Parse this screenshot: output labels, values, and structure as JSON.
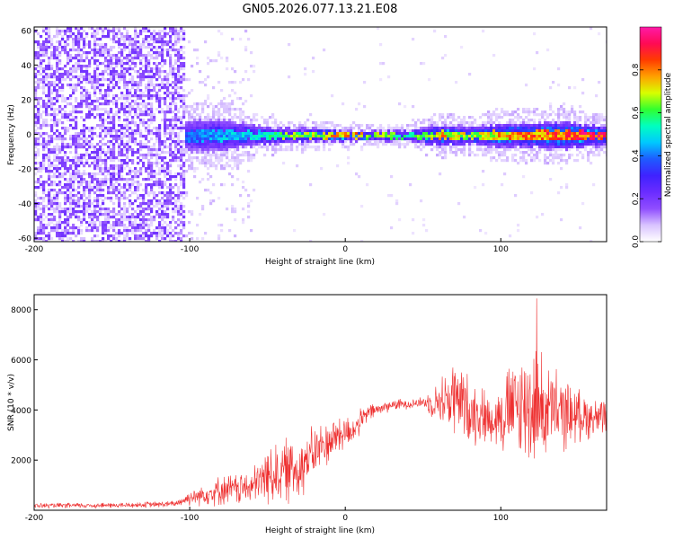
{
  "figure_title": "GN05.2026.077.13.21.E08",
  "colors": {
    "snr_line": "#ee3030",
    "axis": "#000000",
    "background": "#ffffff",
    "colormap": [
      "#ffffff",
      "#d9c3ff",
      "#8f4dff",
      "#6a2cff",
      "#3f22ff",
      "#1e5bff",
      "#00c8ff",
      "#00ffc0",
      "#30ff30",
      "#d8ff00",
      "#ffa000",
      "#ff3c00",
      "#ff0a55",
      "#ff1aa8"
    ]
  },
  "chart_data": [
    {
      "type": "heatmap",
      "ylabel": "Frequency (Hz)",
      "xlabel": "Height of straight line (km)",
      "xlim": [
        -200,
        168
      ],
      "ylim": [
        -62,
        62
      ],
      "xticks": [
        "-200",
        "-100",
        "0",
        "100"
      ],
      "xtick_values": [
        -200,
        -100,
        0,
        100
      ],
      "yticks": [
        "60",
        "40",
        "20",
        "0",
        "-20",
        "-40",
        "-60"
      ],
      "ytick_values": [
        60,
        40,
        20,
        0,
        -20,
        -40,
        -60
      ],
      "noise_region": {
        "from": -200,
        "to": -103,
        "description": "broadband noise"
      },
      "signal_band": {
        "center_hz": 0,
        "points": [
          {
            "x": -112,
            "halfwidth_hz": 5,
            "peak": 0.35
          },
          {
            "x": -100,
            "halfwidth_hz": 9,
            "peak": 0.45
          },
          {
            "x": -80,
            "halfwidth_hz": 9,
            "peak": 0.5
          },
          {
            "x": -60,
            "halfwidth_hz": 6,
            "peak": 0.55
          },
          {
            "x": -40,
            "halfwidth_hz": 4,
            "peak": 0.7
          },
          {
            "x": -20,
            "halfwidth_hz": 4,
            "peak": 0.75
          },
          {
            "x": 0,
            "halfwidth_hz": 3,
            "peak": 0.9
          },
          {
            "x": 20,
            "halfwidth_hz": 3,
            "peak": 0.75
          },
          {
            "x": 40,
            "halfwidth_hz": 3,
            "peak": 0.6
          },
          {
            "x": 60,
            "halfwidth_hz": 6,
            "peak": 0.85
          },
          {
            "x": 80,
            "halfwidth_hz": 5,
            "peak": 0.75
          },
          {
            "x": 100,
            "halfwidth_hz": 7,
            "peak": 0.85
          },
          {
            "x": 120,
            "halfwidth_hz": 7,
            "peak": 0.9
          },
          {
            "x": 140,
            "halfwidth_hz": 8,
            "peak": 0.95
          },
          {
            "x": 168,
            "halfwidth_hz": 5,
            "peak": 1.0
          }
        ]
      },
      "colorbar": {
        "label": "Normalized spectral amplitude",
        "range": [
          0,
          1
        ],
        "ticks": [
          "0.0",
          "0.2",
          "0.4",
          "0.6",
          "0.8"
        ],
        "tick_values": [
          0.0,
          0.2,
          0.4,
          0.6,
          0.8
        ]
      }
    },
    {
      "type": "line",
      "ylabel": "SNR (10 * v/v)",
      "xlabel": "Height of straight line (km)",
      "xlim": [
        -200,
        168
      ],
      "ylim": [
        0,
        8600
      ],
      "xticks": [
        "-200",
        "-100",
        "0",
        "100"
      ],
      "xtick_values": [
        -200,
        -100,
        0,
        100
      ],
      "yticks": [
        "2000",
        "4000",
        "6000",
        "8000"
      ],
      "ytick_values": [
        2000,
        4000,
        6000,
        8000
      ],
      "series": [
        {
          "name": "SNR",
          "envelope": [
            {
              "x": -200,
              "mean": 180,
              "spread": 120
            },
            {
              "x": -140,
              "mean": 200,
              "spread": 130
            },
            {
              "x": -110,
              "mean": 250,
              "spread": 150
            },
            {
              "x": -100,
              "mean": 500,
              "spread": 350
            },
            {
              "x": -80,
              "mean": 800,
              "spread": 700
            },
            {
              "x": -60,
              "mean": 900,
              "spread": 800
            },
            {
              "x": -50,
              "mean": 1400,
              "spread": 1400
            },
            {
              "x": -30,
              "mean": 1700,
              "spread": 1600
            },
            {
              "x": -20,
              "mean": 2300,
              "spread": 1200
            },
            {
              "x": -5,
              "mean": 3000,
              "spread": 1000
            },
            {
              "x": 5,
              "mean": 3200,
              "spread": 700
            },
            {
              "x": 15,
              "mean": 3900,
              "spread": 400
            },
            {
              "x": 30,
              "mean": 4200,
              "spread": 250
            },
            {
              "x": 50,
              "mean": 4300,
              "spread": 250
            },
            {
              "x": 58,
              "mean": 4300,
              "spread": 800
            },
            {
              "x": 70,
              "mean": 4500,
              "spread": 1900
            },
            {
              "x": 80,
              "mean": 4000,
              "spread": 1600
            },
            {
              "x": 95,
              "mean": 3600,
              "spread": 1100
            },
            {
              "x": 105,
              "mean": 4000,
              "spread": 2200
            },
            {
              "x": 120,
              "mean": 4200,
              "spread": 2900
            },
            {
              "x": 135,
              "mean": 3900,
              "spread": 2000
            },
            {
              "x": 150,
              "mean": 3800,
              "spread": 1200
            },
            {
              "x": 168,
              "mean": 3600,
              "spread": 800
            }
          ],
          "peak_max": 8450,
          "peak_x": 123
        }
      ]
    }
  ]
}
